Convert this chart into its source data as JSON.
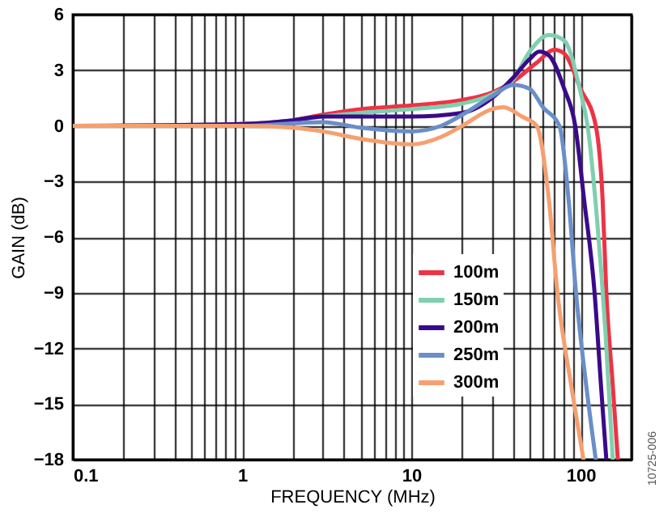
{
  "chart_data": {
    "type": "line",
    "xlabel": "FREQUENCY (MHz)",
    "ylabel": "GAIN (dB)",
    "log": "x",
    "grid": true,
    "legend": "right",
    "line_style": "solid",
    "marker": "none",
    "xlim": [
      0.1,
      200
    ],
    "xticks": [
      0.1,
      {
        "value": 0.2,
        "label": null
      },
      {
        "value": 0.3,
        "label": null
      },
      {
        "value": 0.4,
        "label": null
      },
      {
        "value": 0.5,
        "label": null
      },
      {
        "value": 0.6,
        "label": null
      },
      {
        "value": 0.7,
        "label": null
      },
      {
        "value": 0.8,
        "label": null
      },
      {
        "value": 0.9,
        "label": null
      },
      1,
      {
        "value": 2,
        "label": null
      },
      {
        "value": 3,
        "label": null
      },
      {
        "value": 4,
        "label": null
      },
      {
        "value": 5,
        "label": null
      },
      {
        "value": 6,
        "label": null
      },
      {
        "value": 7,
        "label": null
      },
      {
        "value": 8,
        "label": null
      },
      {
        "value": 9,
        "label": null
      },
      10,
      {
        "value": 20,
        "label": null
      },
      {
        "value": 30,
        "label": null
      },
      {
        "value": 40,
        "label": null
      },
      {
        "value": 50,
        "label": null
      },
      {
        "value": 60,
        "label": null
      },
      {
        "value": 70,
        "label": null
      },
      {
        "value": 80,
        "label": null
      },
      {
        "value": 90,
        "label": null
      },
      100,
      {
        "value": 200,
        "label": null
      }
    ],
    "ylim": [
      -18,
      6
    ],
    "yticks": [
      {
        "value": -18,
        "label": "−18"
      },
      {
        "value": -15,
        "label": "−15"
      },
      {
        "value": -12,
        "label": "−12"
      },
      {
        "value": -9,
        "label": "−9"
      },
      {
        "value": -6,
        "label": "−6"
      },
      {
        "value": -3,
        "label": "−3"
      },
      0,
      3,
      6
    ],
    "annotations": [
      "10725-006"
    ],
    "series": [
      {
        "name": "100m",
        "color": "#ee3344",
        "x": [
          0.1,
          0.3,
          1,
          2,
          3,
          5,
          10,
          20,
          30,
          40,
          55,
          70,
          80,
          100,
          123,
          135,
          142,
          155,
          166
        ],
        "values": [
          0,
          0,
          0.1,
          0.3,
          0.6,
          0.9,
          1.1,
          1.4,
          1.8,
          2.4,
          3.4,
          4.1,
          3.9,
          2.0,
          0,
          -4,
          -9,
          -14,
          -18
        ]
      },
      {
        "name": "150m",
        "color": "#7fcfb0",
        "x": [
          0.1,
          0.3,
          1,
          2,
          3,
          5,
          10,
          20,
          30,
          40,
          50,
          65,
          80,
          100,
          110,
          125,
          140,
          155
        ],
        "values": [
          0,
          0,
          0.1,
          0.3,
          0.5,
          0.7,
          0.9,
          1.2,
          1.7,
          2.5,
          4.0,
          4.9,
          4.6,
          1.8,
          0,
          -5,
          -11,
          -18
        ]
      },
      {
        "name": "200m",
        "color": "#3a0a8a",
        "x": [
          0.1,
          1,
          2,
          3,
          10,
          20,
          30,
          40,
          50,
          57,
          65,
          80,
          93,
          105,
          121,
          132,
          142
        ],
        "values": [
          0,
          0.1,
          0.3,
          0.5,
          0.5,
          0.7,
          1.5,
          2.6,
          3.6,
          4.0,
          3.8,
          2.0,
          0,
          -4,
          -9,
          -14,
          -18
        ]
      },
      {
        "name": "250m",
        "color": "#6a8ec8",
        "x": [
          0.1,
          1,
          3,
          5,
          10,
          15,
          20,
          30,
          40,
          50,
          60,
          75,
          85,
          94,
          108,
          123
        ],
        "values": [
          0,
          0,
          0.2,
          -0.1,
          -0.3,
          0,
          0.6,
          1.6,
          2.2,
          2.0,
          1.0,
          0,
          -4,
          -9,
          -14,
          -18
        ]
      },
      {
        "name": "300m",
        "color": "#f5a070",
        "x": [
          0.1,
          1,
          2,
          3,
          5,
          10,
          15,
          20,
          30,
          35,
          45,
          55,
          65,
          73,
          88,
          104
        ],
        "values": [
          0,
          0,
          -0.1,
          -0.3,
          -0.7,
          -1.0,
          -0.6,
          0,
          0.9,
          1.0,
          0.5,
          0,
          -4,
          -9,
          -14,
          -18
        ]
      }
    ]
  }
}
